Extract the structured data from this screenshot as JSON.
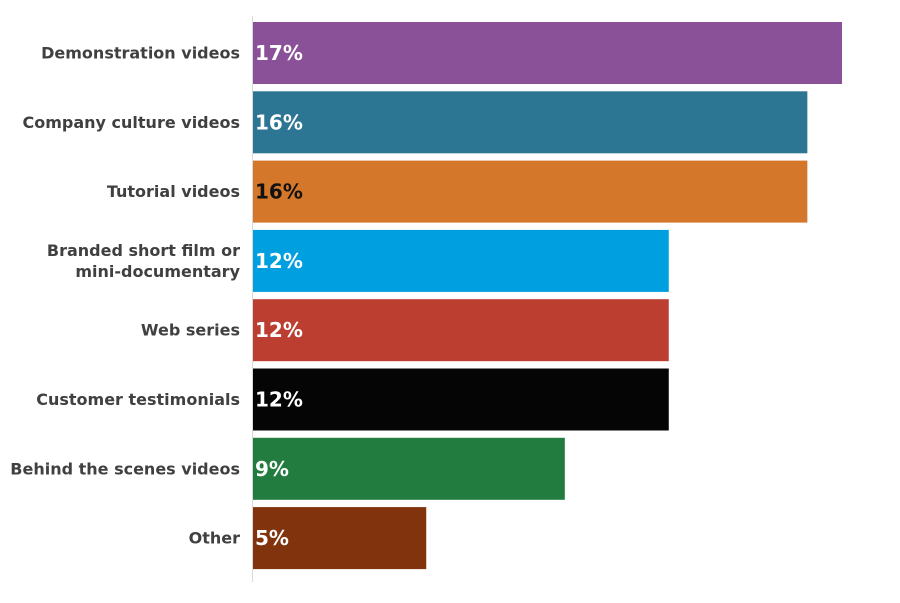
{
  "chart_data": {
    "type": "bar",
    "orientation": "horizontal",
    "categories": [
      "Demonstration videos",
      "Company culture videos",
      "Tutorial videos",
      "Branded short film or mini-documentary",
      "Web series",
      "Customer testimonials",
      "Behind the scenes videos",
      "Other"
    ],
    "category_lines": [
      [
        "Demonstration videos"
      ],
      [
        "Company culture videos"
      ],
      [
        "Tutorial videos"
      ],
      [
        "Branded short film or",
        "mini-documentary"
      ],
      [
        "Web series"
      ],
      [
        "Customer testimonials"
      ],
      [
        "Behind the scenes videos"
      ],
      [
        "Other"
      ]
    ],
    "values": [
      17,
      16,
      16,
      12,
      12,
      12,
      9,
      5
    ],
    "value_labels": [
      "17%",
      "16%",
      "16%",
      "12%",
      "12%",
      "12%",
      "9%",
      "5%"
    ],
    "bar_colors": [
      "#8a5199",
      "#2c7593",
      "#d4772b",
      "#009fdf",
      "#bc3e31",
      "#050505",
      "#227b3f",
      "#80330d"
    ],
    "label_colors": [
      "#ffffff",
      "#ffffff",
      "#111111",
      "#ffffff",
      "#ffffff",
      "#ffffff",
      "#ffffff",
      "#ffffff"
    ],
    "xlim": [
      0,
      17
    ],
    "grid": false,
    "legend": "none",
    "title": "",
    "xlabel": "",
    "ylabel": ""
  }
}
